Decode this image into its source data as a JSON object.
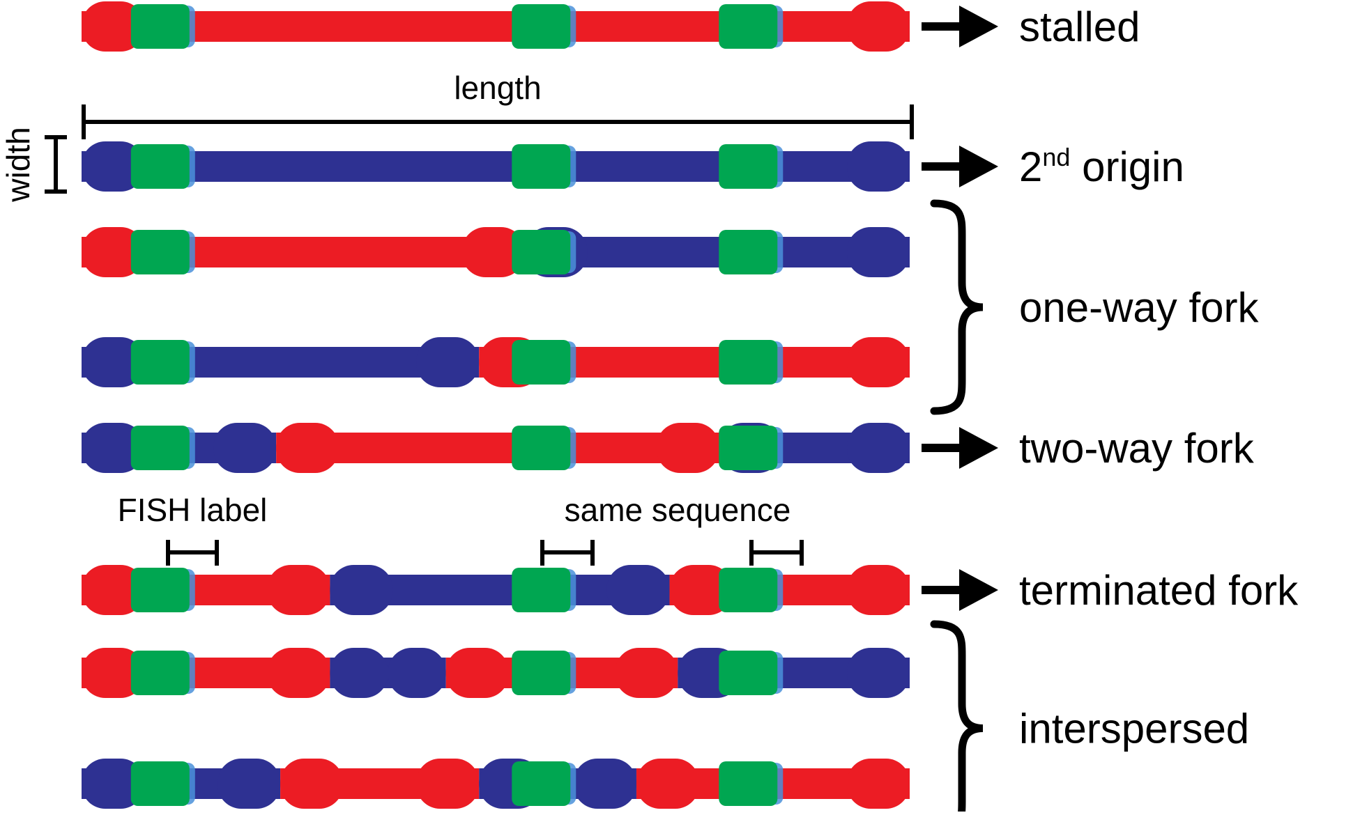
{
  "colors": {
    "red": "#ec1c24",
    "blue": "#2e3192",
    "green": "#00a651",
    "green_fringe": "#4a90d9",
    "ink": "#000000"
  },
  "annotations": {
    "length_label": "length",
    "width_label": "width",
    "fish_label": "FISH label",
    "same_sequence_label": "same sequence"
  },
  "categories": [
    {
      "id": "stalled",
      "label": "stalled",
      "indicator": "arrow",
      "rows": [
        0
      ]
    },
    {
      "id": "second-origin",
      "label_prefix": "2",
      "label_sup": "nd",
      "label_suffix": " origin",
      "indicator": "arrow",
      "rows": [
        1
      ]
    },
    {
      "id": "one-way-fork",
      "label": "one-way fork",
      "indicator": "brace",
      "rows": [
        2,
        3
      ]
    },
    {
      "id": "two-way-fork",
      "label": "two-way fork",
      "indicator": "arrow",
      "rows": [
        4
      ]
    },
    {
      "id": "terminated-fork",
      "label": "terminated fork",
      "indicator": "arrow",
      "rows": [
        5
      ]
    },
    {
      "id": "interspersed",
      "label": "interspersed",
      "indicator": "brace",
      "rows": [
        6,
        7
      ]
    }
  ],
  "fibers": [
    {
      "row": 0,
      "segments": [
        [
          "red",
          0,
          1
        ]
      ]
    },
    {
      "row": 1,
      "segments": [
        [
          "blue",
          0,
          1
        ]
      ]
    },
    {
      "row": 2,
      "segments": [
        [
          "red",
          0,
          0.535
        ],
        [
          "blue",
          0.535,
          1
        ]
      ]
    },
    {
      "row": 3,
      "segments": [
        [
          "blue",
          0,
          0.48
        ],
        [
          "red",
          0.48,
          1
        ]
      ]
    },
    {
      "row": 4,
      "segments": [
        [
          "blue",
          0,
          0.235
        ],
        [
          "red",
          0.235,
          0.77
        ],
        [
          "blue",
          0.77,
          1
        ]
      ]
    },
    {
      "row": 5,
      "segments": [
        [
          "red",
          0,
          0.3
        ],
        [
          "blue",
          0.3,
          0.71
        ],
        [
          "red",
          0.71,
          1
        ]
      ]
    },
    {
      "row": 6,
      "segments": [
        [
          "red",
          0,
          0.3
        ],
        [
          "blue",
          0.3,
          0.44
        ],
        [
          "red",
          0.44,
          0.72
        ],
        [
          "blue",
          0.72,
          1
        ]
      ]
    },
    {
      "row": 7,
      "segments": [
        [
          "blue",
          0,
          0.24
        ],
        [
          "red",
          0.24,
          0.48
        ],
        [
          "blue",
          0.48,
          0.67
        ],
        [
          "red",
          0.67,
          1
        ]
      ]
    }
  ],
  "fish_sites": [
    0.1,
    0.56,
    0.81
  ]
}
